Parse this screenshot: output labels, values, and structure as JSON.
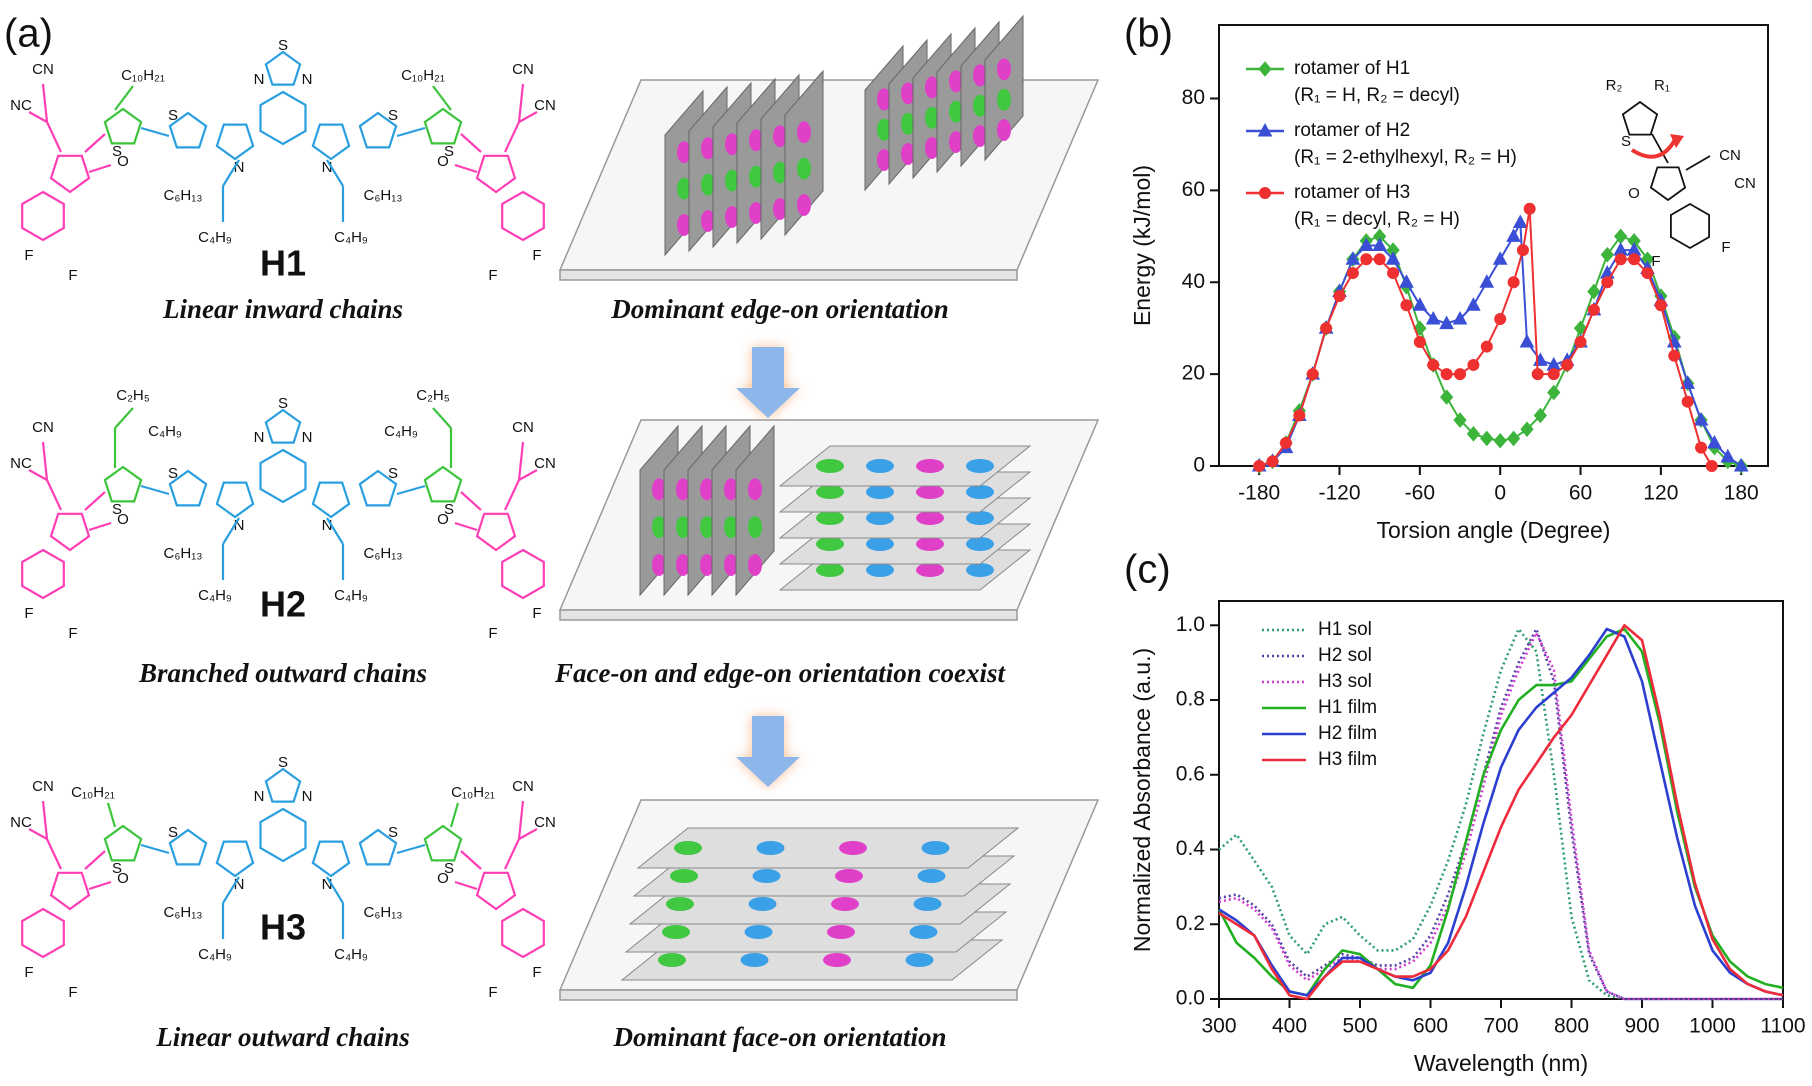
{
  "panel_labels": [
    "(a)",
    "(b)",
    "(c)"
  ],
  "atoms": {
    "cn": "CN",
    "nc": "NC",
    "o": "O",
    "f": "F",
    "n": "N",
    "s": "S"
  },
  "molecules": [
    {
      "name": "H1",
      "caption": "Linear inward chains",
      "side_chain": [
        "C₁₀H₂₁"
      ],
      "core_chain": [
        "C₆H₁₃",
        "C₄H₉"
      ],
      "orientation": "Dominant edge-on orientation"
    },
    {
      "name": "H2",
      "caption": "Branched outward chains",
      "side_chain": [
        "C₂H₅",
        "C₄H₉"
      ],
      "core_chain": [
        "C₆H₁₃",
        "C₄H₉"
      ],
      "orientation": "Face-on and edge-on orientation coexist"
    },
    {
      "name": "H3",
      "caption": "Linear outward chains",
      "side_chain": [
        "C₁₀H₂₁"
      ],
      "core_chain": [
        "C₆H₁₃",
        "C₄H₉"
      ],
      "orientation": "Dominant face-on orientation"
    }
  ],
  "chart_data": [
    {
      "type": "line",
      "xlabel": "Torsion angle (Degree)",
      "ylabel": "Energy (kJ/mol)",
      "xlim": [
        -210,
        200
      ],
      "ylim": [
        0,
        96
      ],
      "xticks": [
        -180,
        -120,
        -60,
        0,
        60,
        120,
        180
      ],
      "yticks": [
        0,
        20,
        40,
        60,
        80
      ],
      "inset": {
        "r2": "R₂",
        "r1": "R₁",
        "s": "S",
        "cn": "CN",
        "o": "O",
        "f": "F"
      },
      "series": [
        {
          "name": "rotamer of H1",
          "substituents": "(R₁ = H, R₂ = decyl)",
          "color": "#3cb43c",
          "marker": "diamond",
          "x": [
            -180,
            -170,
            -160,
            -150,
            -140,
            -130,
            -120,
            -110,
            -100,
            -90,
            -80,
            -70,
            -60,
            -50,
            -40,
            -30,
            -20,
            -10,
            0,
            10,
            20,
            30,
            40,
            50,
            60,
            70,
            80,
            90,
            100,
            110,
            120,
            130,
            140,
            150,
            160,
            170,
            180
          ],
          "values": [
            0,
            1,
            5,
            12,
            20,
            30,
            38,
            45,
            49,
            50,
            47,
            39,
            30,
            22,
            15,
            10,
            7,
            6,
            5.5,
            6,
            8,
            11,
            16,
            22,
            30,
            38,
            46,
            50,
            49,
            45,
            37,
            28,
            18,
            10,
            4,
            1,
            0
          ]
        },
        {
          "name": "rotamer of H2",
          "substituents": "(R₁ = 2-ethylhexyl, R₂ = H)",
          "color": "#3a4fd6",
          "marker": "triangle",
          "x": [
            -180,
            -170,
            -160,
            -150,
            -140,
            -130,
            -120,
            -110,
            -100,
            -90,
            -80,
            -70,
            -60,
            -50,
            -40,
            -30,
            -20,
            -10,
            0,
            10,
            15,
            20,
            30,
            40,
            50,
            60,
            70,
            80,
            90,
            100,
            110,
            120,
            130,
            140,
            150,
            160,
            170,
            180
          ],
          "values": [
            0,
            1,
            4,
            11,
            20,
            30,
            38,
            45,
            48,
            48,
            45,
            40,
            35,
            32,
            31,
            32,
            35,
            40,
            45,
            50,
            53,
            27,
            23,
            22,
            23,
            27,
            34,
            42,
            47,
            47,
            43,
            36,
            27,
            18,
            10,
            5,
            2,
            0
          ]
        },
        {
          "name": "rotamer of H3",
          "substituents": "(R₁ = decyl, R₂ = H)",
          "color": "#ee3030",
          "marker": "circle",
          "x": [
            -180,
            -170,
            -160,
            -150,
            -140,
            -130,
            -120,
            -110,
            -100,
            -90,
            -80,
            -70,
            -60,
            -50,
            -40,
            -30,
            -20,
            -10,
            0,
            10,
            17,
            22,
            28,
            40,
            50,
            60,
            70,
            80,
            90,
            100,
            110,
            120,
            130,
            140,
            150,
            158
          ],
          "values": [
            0,
            1,
            5,
            11,
            20,
            30,
            37,
            42,
            45,
            45,
            42,
            35,
            27,
            22,
            20,
            20,
            22,
            26,
            32,
            40,
            47,
            56,
            20,
            20,
            22,
            27,
            34,
            40,
            45,
            45,
            42,
            35,
            24,
            14,
            4,
            0
          ]
        }
      ]
    },
    {
      "type": "line",
      "xlabel": "Wavelength (nm)",
      "ylabel": "Normalized Absorbance (a.u.)",
      "xlim": [
        300,
        1100
      ],
      "ylim": [
        0,
        1.065
      ],
      "xticks": [
        300,
        400,
        500,
        600,
        700,
        800,
        900,
        1000,
        1100
      ],
      "yticks": [
        {
          "value": 0,
          "label": "0.0"
        },
        0.2,
        0.4,
        0.6,
        0.8,
        {
          "value": 1,
          "label": "1.0"
        }
      ],
      "x": [
        300,
        325,
        350,
        375,
        400,
        425,
        450,
        475,
        500,
        525,
        550,
        575,
        600,
        625,
        650,
        675,
        700,
        725,
        750,
        775,
        800,
        825,
        850,
        875,
        900,
        925,
        950,
        975,
        1000,
        1025,
        1050,
        1075,
        1100
      ],
      "series": [
        {
          "name": "H1 sol",
          "color": "#2e9e6e",
          "style": "dotted",
          "values": [
            0.4,
            0.44,
            0.37,
            0.3,
            0.17,
            0.12,
            0.2,
            0.22,
            0.17,
            0.13,
            0.13,
            0.16,
            0.25,
            0.37,
            0.52,
            0.71,
            0.88,
            0.99,
            0.93,
            0.6,
            0.22,
            0.05,
            0.01,
            0,
            0,
            0,
            0,
            0,
            0,
            0,
            0,
            0,
            0
          ]
        },
        {
          "name": "H2 sol",
          "color": "#5a3fa8",
          "style": "dotted",
          "values": [
            0.27,
            0.28,
            0.25,
            0.2,
            0.1,
            0.06,
            0.09,
            0.12,
            0.11,
            0.09,
            0.09,
            0.11,
            0.17,
            0.28,
            0.42,
            0.6,
            0.78,
            0.9,
            0.99,
            0.85,
            0.45,
            0.12,
            0.02,
            0,
            0,
            0,
            0,
            0,
            0,
            0,
            0,
            0,
            0
          ]
        },
        {
          "name": "H3 sol",
          "color": "#d03cd0",
          "style": "dotted",
          "values": [
            0.26,
            0.27,
            0.24,
            0.19,
            0.09,
            0.05,
            0.08,
            0.11,
            0.1,
            0.08,
            0.08,
            0.1,
            0.15,
            0.25,
            0.39,
            0.57,
            0.76,
            0.88,
            0.98,
            0.88,
            0.48,
            0.13,
            0.02,
            0,
            0,
            0,
            0,
            0,
            0,
            0,
            0,
            0,
            0
          ]
        },
        {
          "name": "H1 film",
          "color": "#22b022",
          "style": "solid",
          "values": [
            0.24,
            0.15,
            0.11,
            0.06,
            0.02,
            0.01,
            0.08,
            0.13,
            0.12,
            0.08,
            0.04,
            0.03,
            0.09,
            0.24,
            0.42,
            0.6,
            0.72,
            0.8,
            0.84,
            0.84,
            0.85,
            0.91,
            0.97,
            0.99,
            0.93,
            0.74,
            0.5,
            0.3,
            0.17,
            0.1,
            0.06,
            0.04,
            0.03
          ]
        },
        {
          "name": "H2 film",
          "color": "#2b3fd0",
          "style": "solid",
          "values": [
            0.24,
            0.21,
            0.17,
            0.09,
            0.02,
            0.01,
            0.06,
            0.11,
            0.11,
            0.08,
            0.06,
            0.05,
            0.07,
            0.15,
            0.3,
            0.47,
            0.62,
            0.72,
            0.78,
            0.82,
            0.86,
            0.92,
            0.99,
            0.97,
            0.85,
            0.64,
            0.43,
            0.25,
            0.13,
            0.07,
            0.04,
            0.02,
            0.01
          ]
        },
        {
          "name": "H3 film",
          "color": "#ee2b3a",
          "style": "solid",
          "values": [
            0.23,
            0.2,
            0.17,
            0.08,
            0.01,
            0.0,
            0.06,
            0.1,
            0.1,
            0.08,
            0.06,
            0.06,
            0.08,
            0.13,
            0.22,
            0.34,
            0.46,
            0.56,
            0.63,
            0.7,
            0.76,
            0.84,
            0.92,
            1.0,
            0.96,
            0.76,
            0.52,
            0.31,
            0.16,
            0.08,
            0.04,
            0.02,
            0.01
          ]
        }
      ]
    }
  ]
}
